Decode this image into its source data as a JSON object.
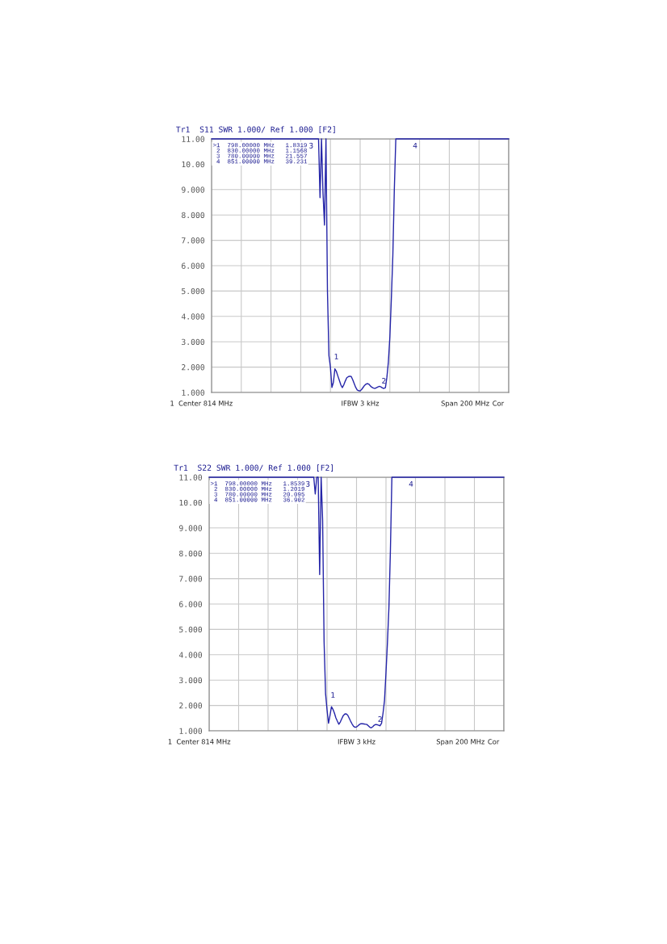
{
  "chart_data": [
    {
      "type": "line",
      "title": "Tr1  S11 SWR 1.000/ Ref 1.000 [F2]",
      "categories": [
        null,
        null,
        null,
        null,
        null,
        null,
        null,
        null,
        null,
        null,
        null,
        null,
        null,
        null,
        null,
        null,
        null,
        null,
        null,
        null,
        null,
        null,
        null,
        null,
        null,
        null,
        null,
        null,
        null,
        null,
        null,
        null,
        null,
        null,
        null,
        null,
        null,
        null,
        null,
        null,
        null,
        null,
        null,
        null,
        null,
        null,
        null,
        null,
        null,
        null,
        null,
        null,
        null,
        null,
        null,
        null,
        null,
        null,
        null,
        null,
        null,
        null,
        null,
        null,
        null,
        null,
        null,
        null,
        null,
        null,
        null,
        null,
        null,
        null,
        null,
        null,
        null,
        null,
        null,
        null,
        null,
        null,
        null,
        null,
        null,
        null,
        null,
        null,
        null,
        null,
        null,
        null,
        null,
        null,
        null,
        null,
        null,
        null,
        null,
        null,
        null,
        null,
        null,
        null,
        null,
        null,
        null,
        null,
        null,
        null,
        null,
        null,
        null,
        null,
        null,
        null,
        null,
        null,
        null,
        null,
        null,
        null,
        null,
        null,
        null,
        null,
        null,
        null,
        null,
        null,
        null,
        null,
        null,
        null,
        null,
        null,
        null,
        null,
        null,
        null,
        null,
        null,
        null,
        null,
        null,
        null,
        null,
        null,
        null,
        null,
        null,
        null,
        null,
        null,
        null,
        null,
        null,
        null,
        null,
        null,
        null,
        null,
        null,
        null,
        null,
        null,
        null,
        null,
        null,
        null,
        null,
        null,
        null,
        null,
        null,
        null,
        null,
        null,
        null,
        null,
        null,
        null,
        null,
        null,
        null,
        null,
        null,
        null,
        null,
        null,
        null,
        null,
        null,
        null,
        null,
        null,
        null,
        null,
        null,
        null,
        null
      ],
      "ylim": [
        1,
        11
      ],
      "yticks": [
        {
          "value": 1,
          "label": "1.000"
        },
        {
          "value": 2,
          "label": "2.000"
        },
        {
          "value": 3,
          "label": "3.000"
        },
        {
          "value": 4,
          "label": "4.000"
        },
        {
          "value": 5,
          "label": "5.000"
        },
        {
          "value": 6,
          "label": "6.000"
        },
        {
          "value": 7,
          "label": "7.000"
        },
        {
          "value": 8,
          "label": "8.000"
        },
        {
          "value": 9,
          "label": "9.000"
        },
        {
          "value": 10,
          "label": "10.00"
        },
        {
          "value": 11,
          "label": "11.00"
        }
      ],
      "tick_labels": "y",
      "grid": true,
      "marker": "none",
      "line_style": "solid",
      "series": [
        {
          "color": "#2424a8",
          "values": [
            11,
            11,
            11,
            11,
            11,
            11,
            11,
            11,
            11,
            11,
            11,
            11,
            11,
            11,
            11,
            11,
            11,
            11,
            11,
            11,
            11,
            11,
            11,
            11,
            11,
            11,
            11,
            11,
            11,
            11,
            11,
            11,
            11,
            11,
            11,
            11,
            11,
            11,
            11,
            11,
            11,
            11,
            11,
            11,
            11,
            11,
            11,
            11,
            11,
            11,
            11,
            11,
            11,
            11,
            11,
            11,
            11,
            11,
            11,
            11,
            11,
            11,
            11,
            11,
            11,
            11,
            11,
            11,
            11,
            11,
            11,
            11,
            11,
            8.68,
            11,
            8.86,
            7.6,
            11,
            5.0,
            2.45,
            2.0,
            1.2,
            1.4,
            1.93,
            1.83,
            1.65,
            1.48,
            1.3,
            1.19,
            1.3,
            1.45,
            1.58,
            1.62,
            1.64,
            1.63,
            1.5,
            1.35,
            1.2,
            1.1,
            1.07,
            1.06,
            1.12,
            1.2,
            1.28,
            1.33,
            1.35,
            1.32,
            1.25,
            1.2,
            1.17,
            1.16,
            1.19,
            1.22,
            1.24,
            1.22,
            1.18,
            1.16,
            1.19,
            1.6,
            2.2,
            3.2,
            4.7,
            6.4,
            9.0,
            11,
            11,
            11,
            11,
            11,
            11,
            11,
            11,
            11,
            11,
            11,
            11,
            11,
            11,
            11,
            11,
            11,
            11,
            11,
            11,
            11,
            11,
            11,
            11,
            11,
            11,
            11,
            11,
            11,
            11,
            11,
            11,
            11,
            11,
            11,
            11,
            11,
            11,
            11,
            11,
            11,
            11,
            11,
            11,
            11,
            11,
            11,
            11,
            11,
            11,
            11,
            11,
            11,
            11,
            11,
            11,
            11,
            11,
            11,
            11,
            11,
            11,
            11,
            11,
            11,
            11,
            11,
            11,
            11,
            11,
            11,
            11,
            11,
            11,
            11,
            11,
            11
          ]
        }
      ],
      "annotations": [
        ">1  798.00000 MHz   1.8319\n 2  830.00000 MHz   1.1568\n 3  780.00000 MHz   21.557\n 4  851.00000 MHz   39.231",
        "1  Center 814 MHz",
        "IFBW 3 kHz",
        "Span 200 MHz",
        "Cor",
        "1",
        "2",
        "3",
        "4"
      ]
    },
    {
      "type": "line",
      "title": "Tr1  S22 SWR 1.000/ Ref 1.000 [F2]",
      "categories": [
        null,
        null,
        null,
        null,
        null,
        null,
        null,
        null,
        null,
        null,
        null,
        null,
        null,
        null,
        null,
        null,
        null,
        null,
        null,
        null,
        null,
        null,
        null,
        null,
        null,
        null,
        null,
        null,
        null,
        null,
        null,
        null,
        null,
        null,
        null,
        null,
        null,
        null,
        null,
        null,
        null,
        null,
        null,
        null,
        null,
        null,
        null,
        null,
        null,
        null,
        null,
        null,
        null,
        null,
        null,
        null,
        null,
        null,
        null,
        null,
        null,
        null,
        null,
        null,
        null,
        null,
        null,
        null,
        null,
        null,
        null,
        null,
        null,
        null,
        null,
        null,
        null,
        null,
        null,
        null,
        null,
        null,
        null,
        null,
        null,
        null,
        null,
        null,
        null,
        null,
        null,
        null,
        null,
        null,
        null,
        null,
        null,
        null,
        null,
        null,
        null,
        null,
        null,
        null,
        null,
        null,
        null,
        null,
        null,
        null,
        null,
        null,
        null,
        null,
        null,
        null,
        null,
        null,
        null,
        null,
        null,
        null,
        null,
        null,
        null,
        null,
        null,
        null,
        null,
        null,
        null,
        null,
        null,
        null,
        null,
        null,
        null,
        null,
        null,
        null,
        null,
        null,
        null,
        null,
        null,
        null,
        null,
        null,
        null,
        null,
        null,
        null,
        null,
        null,
        null,
        null,
        null,
        null,
        null,
        null,
        null,
        null,
        null,
        null,
        null,
        null,
        null,
        null,
        null,
        null,
        null,
        null,
        null,
        null,
        null,
        null,
        null,
        null,
        null,
        null,
        null,
        null,
        null,
        null,
        null,
        null,
        null,
        null,
        null,
        null,
        null,
        null,
        null,
        null,
        null,
        null,
        null,
        null,
        null,
        null,
        null
      ],
      "ylim": [
        1,
        11
      ],
      "yticks": [
        {
          "value": 1,
          "label": "1.000"
        },
        {
          "value": 2,
          "label": "2.000"
        },
        {
          "value": 3,
          "label": "3.000"
        },
        {
          "value": 4,
          "label": "4.000"
        },
        {
          "value": 5,
          "label": "5.000"
        },
        {
          "value": 6,
          "label": "6.000"
        },
        {
          "value": 7,
          "label": "7.000"
        },
        {
          "value": 8,
          "label": "8.000"
        },
        {
          "value": 9,
          "label": "9.000"
        },
        {
          "value": 10,
          "label": "10.00"
        },
        {
          "value": 11,
          "label": "11.00"
        }
      ],
      "tick_labels": "y",
      "grid": true,
      "marker": "none",
      "line_style": "solid",
      "series": [
        {
          "color": "#2424a8",
          "values": [
            11,
            11,
            11,
            11,
            11,
            11,
            11,
            11,
            11,
            11,
            11,
            11,
            11,
            11,
            11,
            11,
            11,
            11,
            11,
            11,
            11,
            11,
            11,
            11,
            11,
            11,
            11,
            11,
            11,
            11,
            11,
            11,
            11,
            11,
            11,
            11,
            11,
            11,
            11,
            11,
            11,
            11,
            11,
            11,
            11,
            11,
            11,
            11,
            11,
            11,
            11,
            11,
            11,
            11,
            11,
            11,
            11,
            11,
            11,
            11,
            11,
            11,
            11,
            11,
            11,
            11,
            11,
            11,
            11,
            11,
            11,
            11,
            10.34,
            11,
            11,
            7.16,
            11,
            9.3,
            4.5,
            2.47,
            1.83,
            1.3,
            1.6,
            1.95,
            1.85,
            1.7,
            1.51,
            1.38,
            1.26,
            1.35,
            1.48,
            1.6,
            1.66,
            1.67,
            1.62,
            1.5,
            1.38,
            1.27,
            1.18,
            1.14,
            1.15,
            1.2,
            1.25,
            1.28,
            1.28,
            1.27,
            1.26,
            1.25,
            1.2,
            1.14,
            1.12,
            1.16,
            1.22,
            1.25,
            1.24,
            1.22,
            1.2,
            1.3,
            1.7,
            2.2,
            3.3,
            4.5,
            5.88,
            8.12,
            11,
            11,
            11,
            11,
            11,
            11,
            11,
            11,
            11,
            11,
            11,
            11,
            11,
            11,
            11,
            11,
            11,
            11,
            11,
            11,
            11,
            11,
            11,
            11,
            11,
            11,
            11,
            11,
            11,
            11,
            11,
            11,
            11,
            11,
            11,
            11,
            11,
            11,
            11,
            11,
            11,
            11,
            11,
            11,
            11,
            11,
            11,
            11,
            11,
            11,
            11,
            11,
            11,
            11,
            11,
            11,
            11,
            11,
            11,
            11,
            11,
            11,
            11,
            11,
            11,
            11,
            11,
            11,
            11,
            11,
            11,
            11,
            11,
            11,
            11,
            11,
            11
          ]
        }
      ],
      "annotations": [
        ">1  798.00000 MHz   1.8539\n 2  830.00000 MHz   1.2019\n 3  780.00000 MHz   20.095\n 4  851.00000 MHz   36.902",
        "1  Center 814 MHz",
        "IFBW 3 kHz",
        "Span 200 MHz",
        "Cor",
        "1",
        "2",
        "3",
        "4"
      ]
    }
  ]
}
